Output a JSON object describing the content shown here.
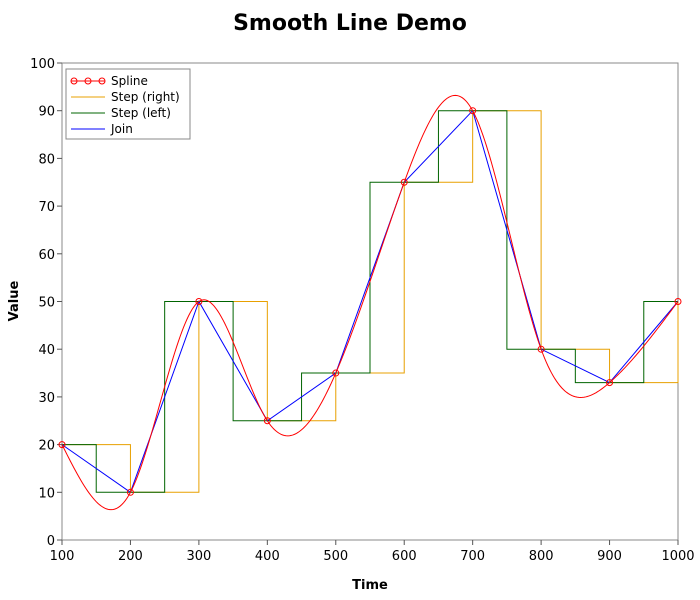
{
  "chart_data": {
    "type": "line",
    "title": "Smooth Line Demo",
    "xlabel": "Time",
    "ylabel": "Value",
    "xlim": [
      100,
      1000
    ],
    "ylim": [
      0,
      100
    ],
    "x_ticks": [
      100,
      200,
      300,
      400,
      500,
      600,
      700,
      800,
      900,
      1000
    ],
    "y_ticks": [
      0,
      10,
      20,
      30,
      40,
      50,
      60,
      70,
      80,
      90,
      100
    ],
    "grid": false,
    "legend_position": "top-left",
    "x": [
      100,
      200,
      300,
      400,
      500,
      600,
      700,
      800,
      900,
      1000
    ],
    "y": [
      20,
      10,
      50,
      25,
      35,
      75,
      90,
      40,
      33,
      50
    ],
    "series": [
      {
        "name": "Spline",
        "style": "spline",
        "color": "#ff0000",
        "markers": "circle"
      },
      {
        "name": "Step (right)",
        "style": "step-right",
        "color": "#e8a000"
      },
      {
        "name": "Step (left)",
        "style": "step-left",
        "color": "#006400"
      },
      {
        "name": "Join",
        "style": "join",
        "color": "#0000ff"
      }
    ]
  }
}
